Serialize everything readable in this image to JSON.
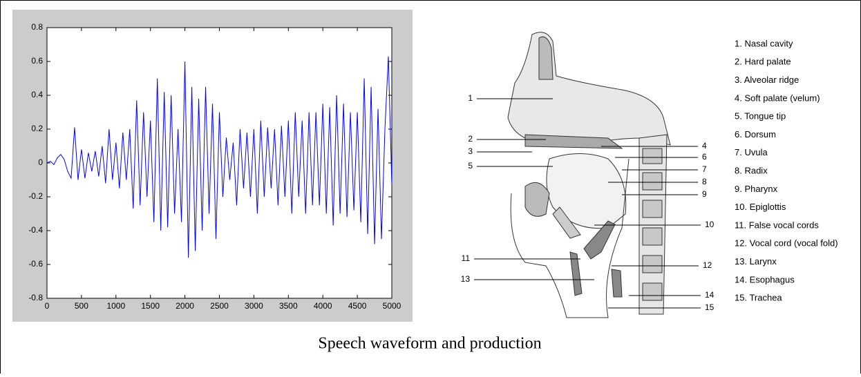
{
  "chart_data": {
    "type": "line",
    "color": "#0000ff",
    "x": [
      0,
      50,
      100,
      150,
      200,
      250,
      300,
      350,
      400,
      450,
      500,
      550,
      600,
      650,
      700,
      750,
      800,
      850,
      900,
      950,
      1000,
      1050,
      1100,
      1150,
      1200,
      1250,
      1300,
      1350,
      1400,
      1450,
      1500,
      1550,
      1600,
      1650,
      1700,
      1750,
      1800,
      1850,
      1900,
      1950,
      2000,
      2050,
      2100,
      2150,
      2200,
      2250,
      2300,
      2350,
      2400,
      2450,
      2500,
      2550,
      2600,
      2650,
      2700,
      2750,
      2800,
      2850,
      2900,
      2950,
      3000,
      3050,
      3100,
      3150,
      3200,
      3250,
      3300,
      3350,
      3400,
      3450,
      3500,
      3550,
      3600,
      3650,
      3700,
      3750,
      3800,
      3850,
      3900,
      3950,
      4000,
      4050,
      4100,
      4150,
      4200,
      4250,
      4300,
      4350,
      4400,
      4450,
      4500,
      4550,
      4600,
      4650,
      4700,
      4750,
      4800,
      4850,
      4900,
      4950,
      5000
    ],
    "values": [
      0,
      0.01,
      -0.01,
      0.03,
      0.05,
      0.02,
      -0.05,
      -0.09,
      0.21,
      -0.1,
      0.08,
      -0.09,
      0.06,
      -0.05,
      0.07,
      -0.08,
      0.1,
      -0.12,
      0.2,
      -0.1,
      0.12,
      -0.15,
      0.18,
      -0.1,
      0.2,
      -0.27,
      0.37,
      -0.25,
      0.3,
      -0.2,
      0.25,
      -0.35,
      0.5,
      -0.4,
      0.42,
      -0.38,
      0.4,
      -0.3,
      0.2,
      -0.35,
      0.6,
      -0.56,
      0.45,
      -0.52,
      0.38,
      -0.4,
      0.45,
      -0.3,
      0.35,
      -0.45,
      0.3,
      -0.2,
      0.15,
      -0.1,
      0.12,
      -0.25,
      0.2,
      -0.15,
      0.18,
      -0.2,
      0.2,
      -0.3,
      0.25,
      -0.2,
      0.21,
      -0.15,
      0.2,
      -0.25,
      0.22,
      -0.2,
      0.25,
      -0.3,
      0.3,
      -0.2,
      0.25,
      -0.3,
      0.3,
      -0.25,
      0.3,
      -0.25,
      0.35,
      -0.3,
      0.33,
      -0.37,
      0.4,
      -0.3,
      0.35,
      -0.32,
      0.3,
      -0.28,
      0.3,
      -0.35,
      0.5,
      -0.42,
      0.45,
      -0.48,
      0.32,
      -0.45,
      0.2,
      0.63,
      -0.13
    ],
    "xlim": [
      0,
      5000
    ],
    "xticks": [
      0,
      500,
      1000,
      1500,
      2000,
      2500,
      3000,
      3500,
      4000,
      4500,
      5000
    ],
    "ylim": [
      -0.8,
      0.8
    ],
    "yticks": [
      -0.8,
      -0.6,
      -0.4,
      -0.2,
      0,
      0.2,
      0.4,
      0.6,
      0.8
    ]
  },
  "diagram": {
    "callouts": [
      "1",
      "2",
      "3",
      "5",
      "4",
      "6",
      "7",
      "8",
      "9",
      "10",
      "11",
      "13",
      "12",
      "14",
      "15"
    ],
    "legend": [
      "1. Nasal cavity",
      "2. Hard palate",
      "3. Alveolar ridge",
      "4. Soft palate (velum)",
      "5. Tongue tip",
      "6. Dorsum",
      "7. Uvula",
      "8. Radix",
      "9. Pharynx",
      "10. Epiglottis",
      "11. False vocal cords",
      "12. Vocal cord (vocal fold)",
      "13. Larynx",
      "14. Esophagus",
      "15. Trachea"
    ]
  },
  "caption": "Speech waveform and production"
}
